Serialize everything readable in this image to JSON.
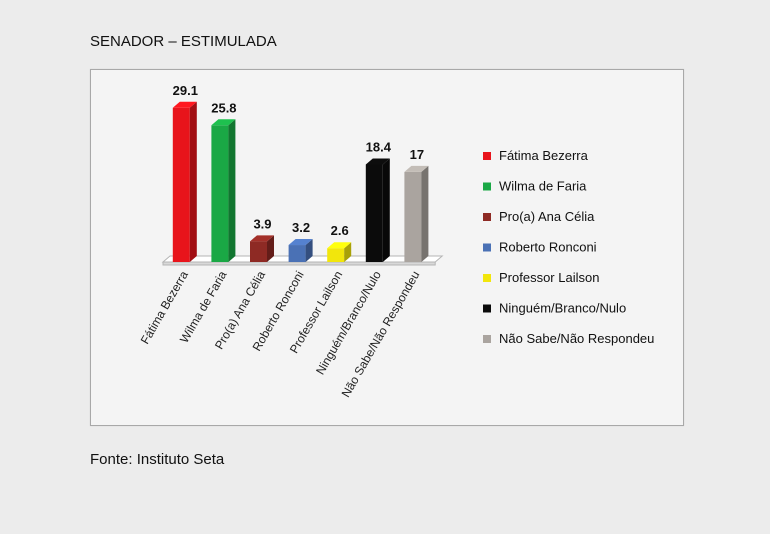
{
  "page": {
    "title": "SENADOR – ESTIMULADA",
    "source": "Fonte: Instituto Seta"
  },
  "chart_data": {
    "type": "bar",
    "title": "SENADOR – ESTIMULADA",
    "xlabel": "",
    "ylabel": "",
    "ylim": [
      0,
      30
    ],
    "grid": false,
    "legend_position": "right",
    "categories": [
      "Fátima Bezerra",
      "Wilma de Faria",
      "Pro(a) Ana Célia",
      "Roberto Ronconi",
      "Professor Lailson",
      "Ninguém/Branco/Nulo",
      "Não Sabe/Não Respondeu"
    ],
    "values": [
      29.1,
      25.8,
      3.9,
      3.2,
      2.6,
      18.4,
      17
    ],
    "value_labels": [
      "29.1",
      "25.8",
      "3.9",
      "3.2",
      "2.6",
      "18.4",
      "17"
    ],
    "colors": [
      "#e8141b",
      "#1aa845",
      "#8e2a24",
      "#4a71b5",
      "#f2e60c",
      "#0b0b0b",
      "#aaa49f"
    ],
    "legend": [
      "Fátima Bezerra",
      "Wilma de Faria",
      "Pro(a) Ana Célia",
      "Roberto Ronconi",
      "Professor Lailson",
      "Ninguém/Branco/Nulo",
      "Não Sabe/Não Respondeu"
    ]
  }
}
